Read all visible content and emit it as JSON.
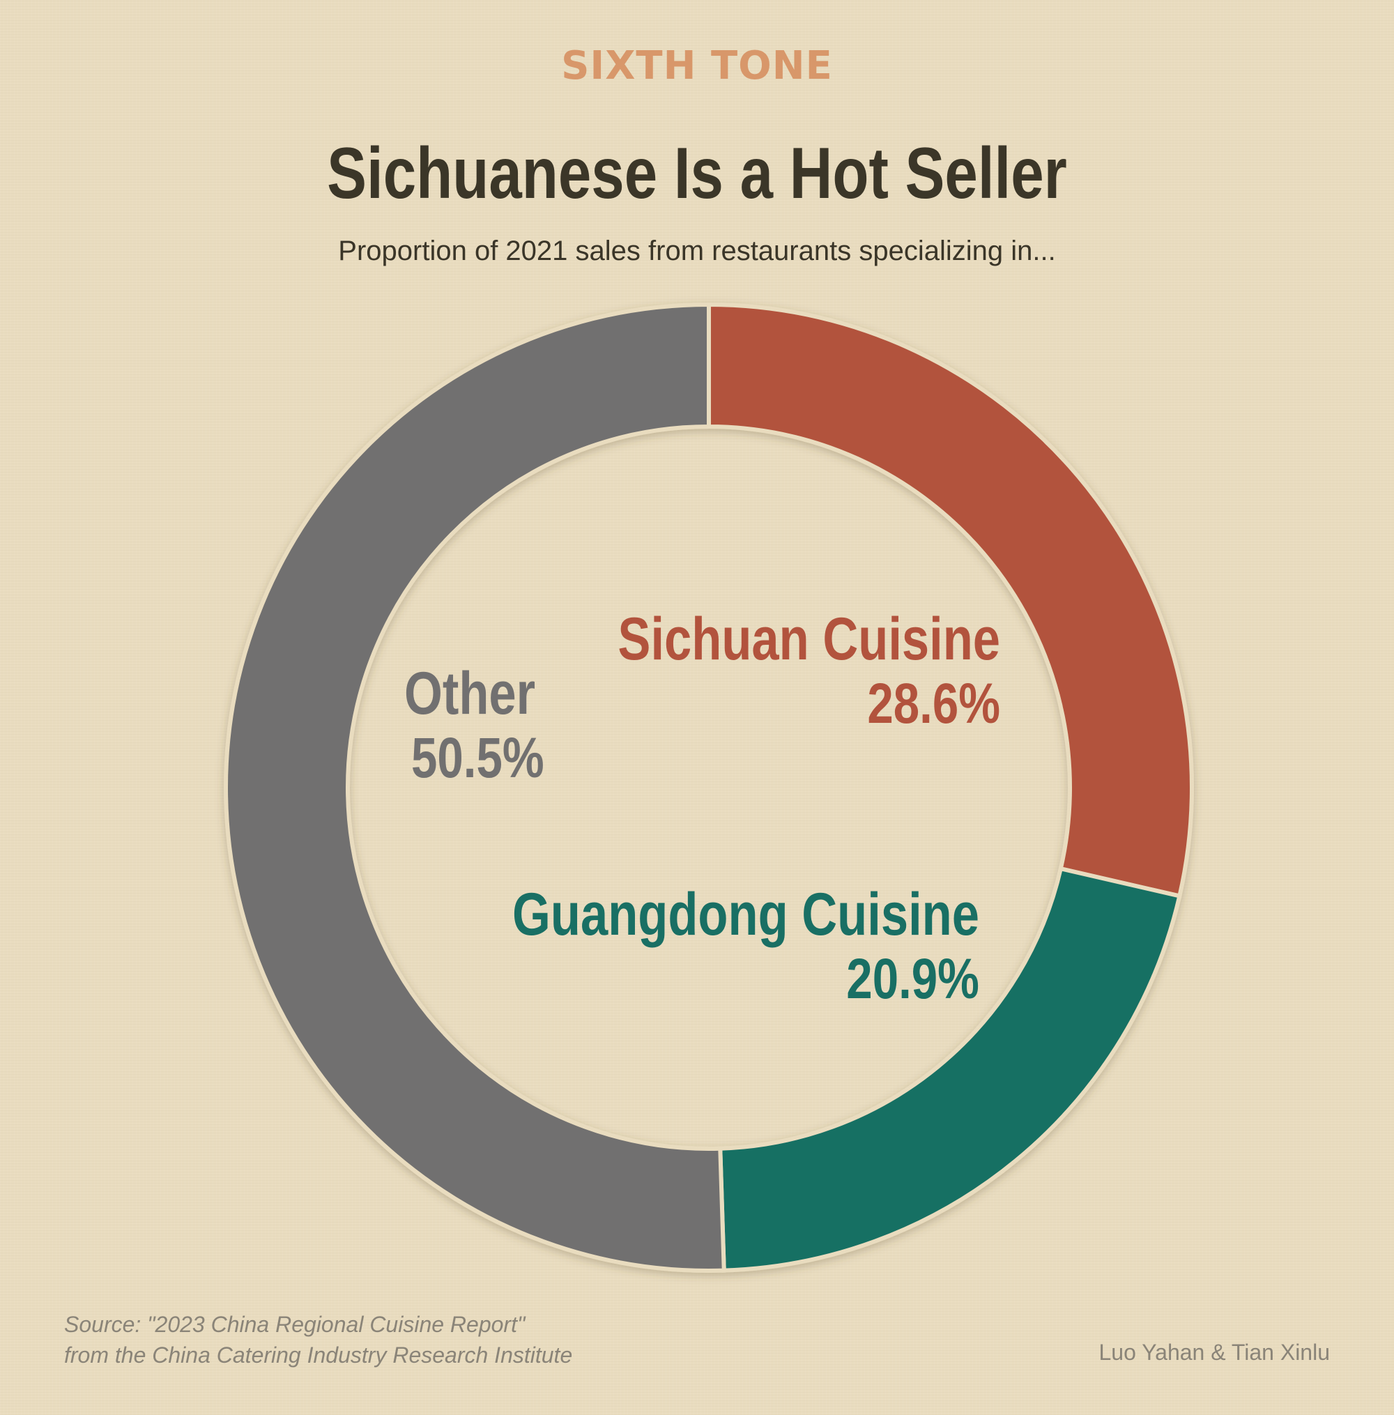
{
  "brand": "SIXTH TONE",
  "chart_data": {
    "type": "pie",
    "variant": "donut",
    "title": "Sichuanese Is a Hot Seller",
    "subtitle": "Proportion of 2021 sales from restaurants specializing in...",
    "slices": [
      {
        "name": "Sichuan Cuisine",
        "value": 28.6,
        "label": "28.6%",
        "color": "#b2533d"
      },
      {
        "name": "Guangdong Cuisine",
        "value": 20.9,
        "label": "20.9%",
        "color": "#196f64"
      },
      {
        "name": "Other",
        "value": 50.5,
        "label": "50.5%",
        "color": "#717070"
      }
    ],
    "start_angle_deg": 0,
    "direction": "clockwise"
  },
  "footer": {
    "source_line1": "Source: \"2023 China Regional Cuisine Report\"",
    "source_line2": "from the China Catering Industry Research Institute",
    "credit": "Luo Yahan & Tian Xinlu"
  }
}
